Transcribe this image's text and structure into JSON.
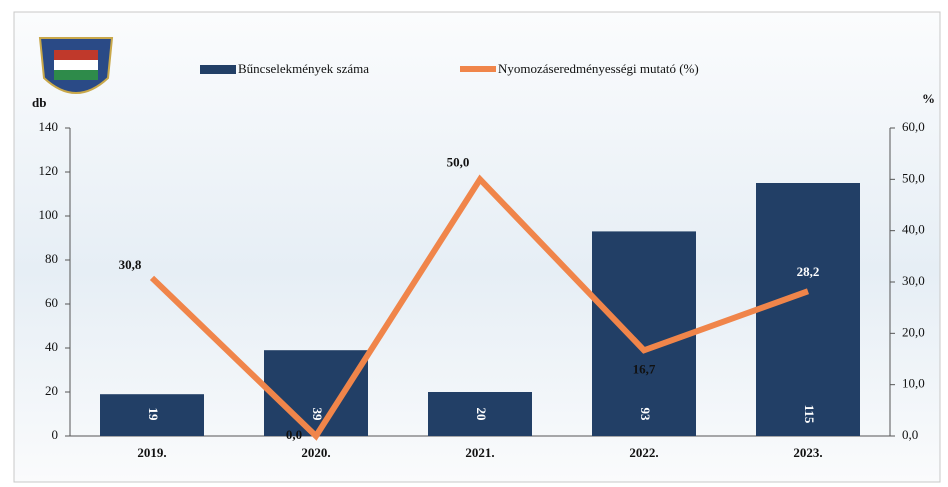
{
  "chart_data": {
    "type": "combo",
    "categories": [
      "2019.",
      "2020.",
      "2021.",
      "2022.",
      "2023."
    ],
    "series": [
      {
        "name": "Bűncselekmények száma",
        "type": "bar",
        "color": "#223f66",
        "values": [
          19,
          39,
          20,
          93,
          115
        ]
      },
      {
        "name": "Nyomozáseredményességi mutató (%)",
        "type": "line",
        "axis": "y2",
        "color": "#f0854a",
        "values": [
          30.8,
          0.0,
          50.0,
          16.7,
          28.2
        ],
        "value_labels": [
          "30,8",
          "0,0",
          "50,0",
          "16,7",
          "28,2"
        ]
      }
    ],
    "ylabel": "db",
    "y2label": "%",
    "ylim": [
      0,
      140
    ],
    "yticks": [
      0,
      20,
      40,
      60,
      80,
      100,
      120,
      140
    ],
    "y2lim": [
      0,
      60
    ],
    "y2ticks": [
      {
        "value": 0,
        "label": "0,0"
      },
      {
        "value": 10,
        "label": "10,0"
      },
      {
        "value": 20,
        "label": "20,0"
      },
      {
        "value": 30,
        "label": "30,0"
      },
      {
        "value": 40,
        "label": "40,0"
      },
      {
        "value": 50,
        "label": "50,0"
      },
      {
        "value": 60,
        "label": "60,0"
      }
    ]
  }
}
